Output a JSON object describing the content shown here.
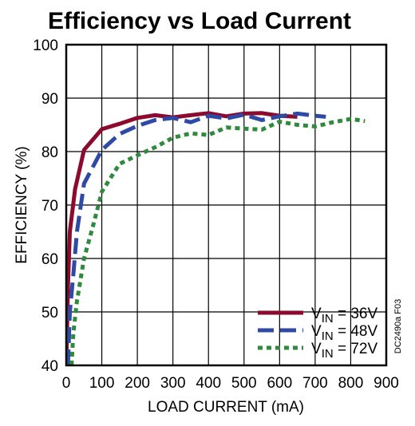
{
  "chart_data": {
    "type": "line",
    "title": "Efficiency vs Load Current",
    "xlabel": "LOAD CURRENT (mA)",
    "ylabel": "EFFICIENCY (%)",
    "xlim": [
      0,
      900
    ],
    "ylim": [
      40,
      100
    ],
    "xticks": [
      0,
      100,
      200,
      300,
      400,
      500,
      600,
      700,
      800,
      900
    ],
    "yticks": [
      40,
      50,
      60,
      70,
      80,
      90,
      100
    ],
    "grid": true,
    "legend_position": "bottom-right",
    "figure_id": "DC2490a F03",
    "series": [
      {
        "name_base": "V",
        "name_sub": "IN",
        "name_rest": " = 36V",
        "color": "#8b0a2e",
        "dash": "solid",
        "x": [
          0,
          5,
          10,
          25,
          50,
          100,
          150,
          200,
          250,
          300,
          350,
          400,
          450,
          500,
          550,
          600,
          650
        ],
        "y": [
          40,
          55,
          65,
          73,
          80.3,
          84.2,
          85.2,
          86.3,
          86.8,
          86.4,
          86.8,
          87.2,
          86.6,
          87.1,
          87.2,
          86.7,
          86.5
        ]
      },
      {
        "name_base": "V",
        "name_sub": "IN",
        "name_rest": " = 48V",
        "color": "#2e4aa6",
        "dash": "dashed",
        "x": [
          5,
          10,
          20,
          30,
          50,
          100,
          150,
          200,
          250,
          300,
          350,
          400,
          450,
          500,
          550,
          600,
          650,
          700,
          730
        ],
        "y": [
          40,
          50,
          57,
          65,
          74,
          80.3,
          83.3,
          84.8,
          85.9,
          86.3,
          85.5,
          86.7,
          86.2,
          86.9,
          85.9,
          86.6,
          87.1,
          86.7,
          86.5
        ]
      },
      {
        "name_base": "V",
        "name_sub": "IN",
        "name_rest": " = 72V",
        "color": "#2f8a3e",
        "dash": "dotted",
        "x": [
          15,
          20,
          30,
          50,
          75,
          100,
          150,
          200,
          250,
          300,
          350,
          400,
          450,
          500,
          550,
          600,
          650,
          700,
          750,
          800,
          840
        ],
        "y": [
          40,
          46,
          52,
          60,
          66,
          72.5,
          77.7,
          79.3,
          80.8,
          82.6,
          83.4,
          83.1,
          84.5,
          84.3,
          84.1,
          85.6,
          85.0,
          84.7,
          85.5,
          86.1,
          85.7
        ]
      }
    ]
  }
}
